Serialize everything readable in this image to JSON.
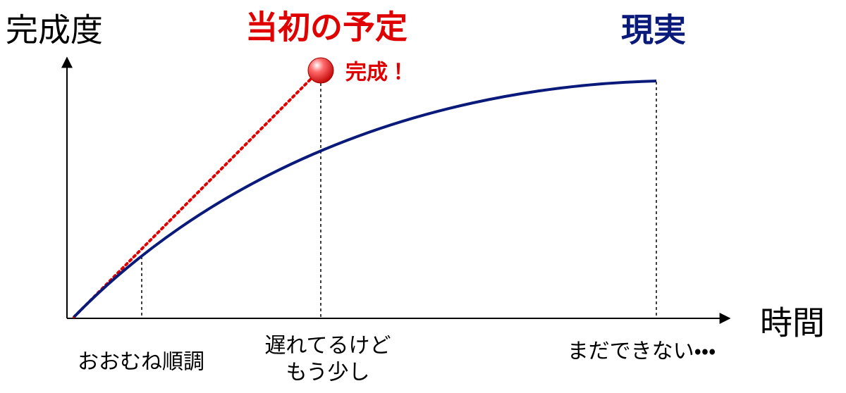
{
  "axes": {
    "y_label": "完成度",
    "x_label": "時間"
  },
  "plan": {
    "label": "当初の予定",
    "milestone": "完成！"
  },
  "actual": {
    "label": "現実"
  },
  "annotations": [
    {
      "lines": [
        "おおむね順調"
      ]
    },
    {
      "lines": [
        "遅れてるけど",
        "もう少し"
      ]
    },
    {
      "lines": [
        "まだできない・・・"
      ]
    }
  ]
}
